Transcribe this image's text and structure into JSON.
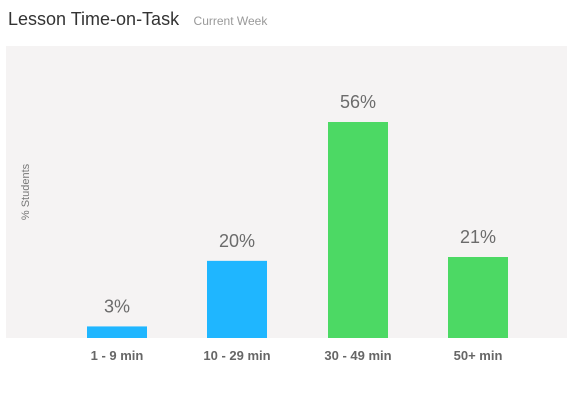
{
  "header": {
    "title": "Lesson Time-on-Task",
    "subtitle": "Current Week"
  },
  "colors": {
    "blue": "#1fb6ff",
    "green": "#4cd964",
    "highlight_text": "#4cd964",
    "text": "#666666"
  },
  "chart_data": {
    "type": "bar",
    "title": "Lesson Time-on-Task",
    "subtitle": "Current Week",
    "xlabel": "",
    "ylabel": "% Students",
    "categories": [
      "1 - 9 min",
      "10 - 29 min",
      "30 - 49 min",
      "50+ min"
    ],
    "values": [
      3,
      20,
      56,
      21
    ],
    "value_labels": [
      "3%",
      "20%",
      "56%",
      "21%"
    ],
    "bar_colors": [
      "#1fb6ff",
      "#1fb6ff",
      "#4cd964",
      "#4cd964"
    ],
    "highlighted_category": "30 - 49 min",
    "ylim": [
      0,
      70
    ],
    "grid": false,
    "legend": "none"
  }
}
